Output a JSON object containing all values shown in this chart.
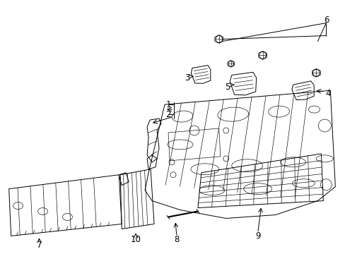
{
  "background_color": "#ffffff",
  "fig_width": 4.89,
  "fig_height": 3.6,
  "dpi": 100,
  "label_fontsize": 8.5
}
